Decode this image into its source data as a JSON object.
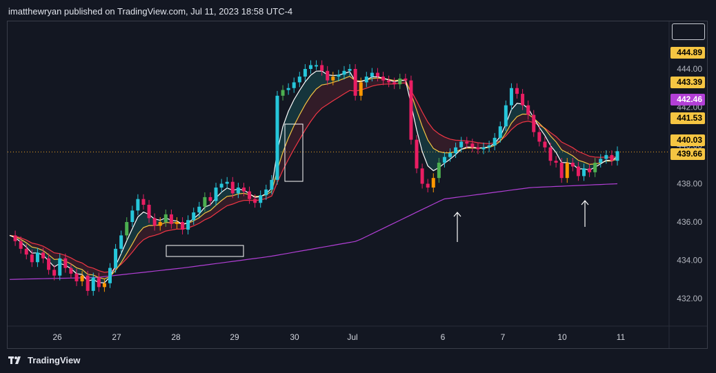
{
  "header": {
    "text": "imatthewryan published on TradingView.com, Jul 11, 2023 18:58 UTC-4"
  },
  "footer": {
    "brand": "TradingView"
  },
  "colors": {
    "background": "#131722",
    "up": "#26c6da",
    "up_alt": "#4caf50",
    "down": "#e91e63",
    "recover": "#ff9800",
    "ema_fast": "#ffffff",
    "ema_mid": "#f5c542",
    "ema_slow": "#f23645",
    "ema_long": "#b23fd6",
    "price_line": "#f5a623"
  },
  "chart_data": {
    "type": "candlestick",
    "symbol_timeframe": "intraday",
    "x_ticks": [
      "26",
      "27",
      "28",
      "29",
      "30",
      "Jul",
      "6",
      "7",
      "10",
      "11"
    ],
    "y_ticks": [
      "432.00",
      "434.00",
      "436.00",
      "438.00",
      "440.00",
      "442.00",
      "444.00"
    ],
    "ylim": [
      430.7,
      446.2
    ],
    "price_labels": [
      {
        "value": "444.89",
        "color": "#f5c542",
        "text_color": "#000000"
      },
      {
        "value": "443.39",
        "color": "#f5c542",
        "text_color": "#000000"
      },
      {
        "value": "442.46",
        "color": "#b23fd6",
        "text_color": "#ffffff"
      },
      {
        "value": "441.53",
        "color": "#f5c542",
        "text_color": "#000000"
      },
      {
        "value": "440.03",
        "color": "#f5c542",
        "text_color": "#000000"
      },
      {
        "value": "439.66",
        "color": "#f5c542",
        "text_color": "#000000"
      }
    ],
    "current_price": 439.66,
    "ema_long": [
      433.0,
      433.1,
      433.6,
      434.2,
      435.0,
      437.2,
      437.8,
      438.0
    ],
    "closes": [
      435.3,
      435.0,
      434.6,
      434.3,
      433.9,
      434.4,
      434.1,
      433.5,
      433.2,
      434.1,
      433.6,
      433.3,
      432.9,
      433.2,
      432.4,
      433.1,
      432.6,
      432.8,
      433.6,
      434.6,
      435.3,
      436.0,
      436.6,
      437.2,
      436.9,
      436.2,
      435.8,
      436.0,
      436.4,
      435.9,
      436.0,
      435.6,
      436.1,
      436.5,
      436.8,
      437.3,
      437.1,
      437.8,
      438.0,
      438.1,
      437.5,
      437.8,
      437.6,
      437.2,
      437.0,
      437.4,
      437.7,
      438.2,
      442.6,
      442.9,
      443.0,
      443.3,
      443.6,
      444.0,
      444.2,
      444.2,
      443.9,
      443.4,
      443.6,
      443.7,
      443.9,
      444.0,
      442.6,
      443.3,
      443.6,
      443.8,
      443.6,
      443.4,
      443.3,
      443.2,
      443.5,
      443.4,
      440.3,
      438.8,
      438.0,
      437.8,
      438.3,
      439.1,
      439.4,
      439.6,
      439.9,
      440.2,
      440.1,
      439.9,
      439.8,
      439.9,
      440.0,
      440.4,
      441.0,
      442.1,
      443.0,
      442.7,
      442.1,
      441.6,
      440.7,
      440.2,
      439.9,
      439.2,
      439.1,
      438.3,
      439.1,
      438.9,
      438.4,
      438.8,
      438.6,
      439.1,
      439.3,
      439.5,
      439.2,
      439.7
    ],
    "annotations": [
      {
        "type": "rectangle",
        "label": ""
      },
      {
        "type": "rectangle",
        "label": ""
      },
      {
        "type": "arrow-up",
        "label": ""
      },
      {
        "type": "arrow-up",
        "label": ""
      }
    ]
  }
}
